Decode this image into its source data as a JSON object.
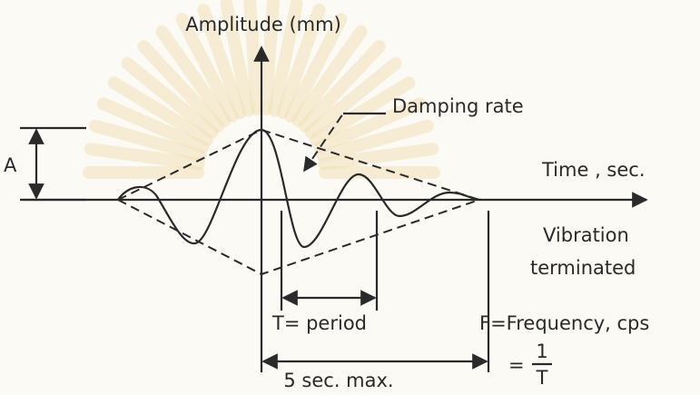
{
  "labels": {
    "y_axis": "Amplitude (mm)",
    "damping": "Damping rate",
    "x_axis": "Time , sec.",
    "amplitude": "A",
    "vibration": [
      "Vibration",
      "terminated"
    ],
    "period": "T= period",
    "frequency": "F=Frequency, cps",
    "formula": {
      "equals": "=",
      "numerator": "1",
      "denominator": "T"
    },
    "duration": "5 sec. max."
  }
}
